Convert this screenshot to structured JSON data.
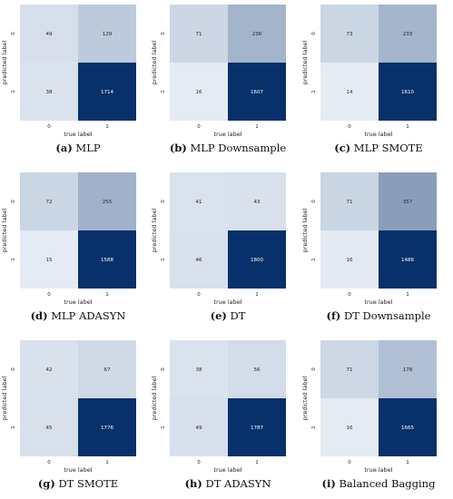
{
  "chart_data": [
    {
      "type": "heatmap",
      "letter": "(a)",
      "name": "MLP",
      "xlabel": "true label",
      "ylabel": "predicted label",
      "x_ticks": [
        "0",
        "1"
      ],
      "y_ticks": [
        "0",
        "1"
      ],
      "values": [
        [
          49,
          129
        ],
        [
          38,
          1714
        ]
      ]
    },
    {
      "type": "heatmap",
      "letter": "(b)",
      "name": "MLP Downsample",
      "xlabel": "true label",
      "ylabel": "predicted label",
      "x_ticks": [
        "0",
        "1"
      ],
      "y_ticks": [
        "0",
        "1"
      ],
      "values": [
        [
          71,
          236
        ],
        [
          16,
          1607
        ]
      ]
    },
    {
      "type": "heatmap",
      "letter": "(c)",
      "name": "MLP SMOTE",
      "xlabel": "true label",
      "ylabel": "predicted label",
      "x_ticks": [
        "0",
        "1"
      ],
      "y_ticks": [
        "0",
        "1"
      ],
      "values": [
        [
          73,
          233
        ],
        [
          14,
          1610
        ]
      ]
    },
    {
      "type": "heatmap",
      "letter": "(d)",
      "name": "MLP ADASYN",
      "xlabel": "true label",
      "ylabel": "predicted label",
      "x_ticks": [
        "0",
        "1"
      ],
      "y_ticks": [
        "0",
        "1"
      ],
      "values": [
        [
          72,
          255
        ],
        [
          15,
          1588
        ]
      ]
    },
    {
      "type": "heatmap",
      "letter": "(e)",
      "name": "DT",
      "xlabel": "true label",
      "ylabel": "predicted label",
      "x_ticks": [
        "0",
        "1"
      ],
      "y_ticks": [
        "0",
        "1"
      ],
      "values": [
        [
          41,
          43
        ],
        [
          46,
          1800
        ]
      ]
    },
    {
      "type": "heatmap",
      "letter": "(f)",
      "name": "DT Downsample",
      "xlabel": "true label",
      "ylabel": "predicted label",
      "x_ticks": [
        "0",
        "1"
      ],
      "y_ticks": [
        "0",
        "1"
      ],
      "values": [
        [
          71,
          357
        ],
        [
          16,
          1486
        ]
      ]
    },
    {
      "type": "heatmap",
      "letter": "(g)",
      "name": "DT SMOTE",
      "xlabel": "true label",
      "ylabel": "predicted label",
      "x_ticks": [
        "0",
        "1"
      ],
      "y_ticks": [
        "0",
        "1"
      ],
      "values": [
        [
          42,
          67
        ],
        [
          45,
          1776
        ]
      ]
    },
    {
      "type": "heatmap",
      "letter": "(h)",
      "name": "DT ADASYN",
      "xlabel": "true label",
      "ylabel": "predicted label",
      "x_ticks": [
        "0",
        "1"
      ],
      "y_ticks": [
        "0",
        "1"
      ],
      "values": [
        [
          38,
          56
        ],
        [
          49,
          1787
        ]
      ]
    },
    {
      "type": "heatmap",
      "letter": "(i)",
      "name": "Balanced Bagging",
      "xlabel": "true label",
      "ylabel": "predicted label",
      "x_ticks": [
        "0",
        "1"
      ],
      "y_ticks": [
        "0",
        "1"
      ],
      "values": [
        [
          71,
          178
        ],
        [
          16,
          1665
        ]
      ]
    }
  ],
  "colors": {
    "low": "#f7fbff",
    "high": "#08306b",
    "dark_text": "#262626",
    "light_text": "#ffffff"
  }
}
